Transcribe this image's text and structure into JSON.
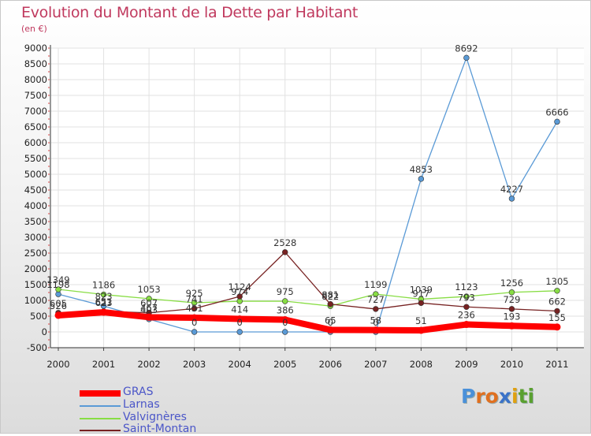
{
  "title": "Evolution du Montant de la Dette par Habitant",
  "subtitle": "(en €)",
  "chart_data": {
    "type": "line",
    "title": "Evolution du Montant de la Dette par Habitant",
    "subtitle": "(en €)",
    "xlabel": "",
    "ylabel": "",
    "categories": [
      "2000",
      "2001",
      "2002",
      "2003",
      "2004",
      "2005",
      "2006",
      "2007",
      "2008",
      "2009",
      "2010",
      "2011"
    ],
    "ylim": [
      -500,
      9000
    ],
    "yticks": [
      -500,
      0,
      500,
      1000,
      1500,
      2000,
      2500,
      3000,
      3500,
      4000,
      4500,
      5000,
      5500,
      6000,
      6500,
      7000,
      7500,
      8000,
      8500,
      9000
    ],
    "grid": true,
    "legend_position": "bottom-left",
    "series": [
      {
        "name": "GRAS",
        "color": "#ff0000",
        "values": [
          526,
          623,
          467,
          451,
          414,
          386,
          65,
          58,
          51,
          236,
          193,
          155
        ]
      },
      {
        "name": "Larnas",
        "color": "#5a9ad6",
        "values": [
          1198,
          823,
          403,
          0,
          0,
          0,
          0,
          0,
          4853,
          8692,
          4227,
          6666
        ]
      },
      {
        "name": "Valvignères",
        "color": "#88dd44",
        "values": [
          1349,
          1186,
          1053,
          925,
          974,
          975,
          822,
          1199,
          1039,
          1123,
          1256,
          1305
        ]
      },
      {
        "name": "Saint-Montan",
        "color": "#772222",
        "values": [
          605,
          651,
          607,
          741,
          1124,
          2528,
          881,
          727,
          917,
          793,
          729,
          662
        ]
      }
    ]
  },
  "logo": {
    "text": "Proxiti",
    "letters": [
      "P",
      "r",
      "o",
      "x",
      "i",
      "t",
      "i"
    ],
    "colors": [
      "#4a90d9",
      "#e07020",
      "#e07020",
      "#3a72c8",
      "#e0a010",
      "#5aa030",
      "#5aa030"
    ]
  }
}
